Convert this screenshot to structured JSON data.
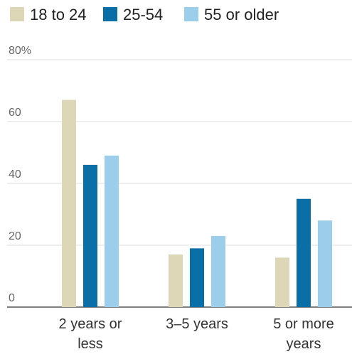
{
  "chart_data": {
    "type": "bar",
    "title": "",
    "xlabel": "",
    "ylabel": "",
    "ylim": [
      0,
      80
    ],
    "y_ticks": [
      {
        "value": 0,
        "label": "0"
      },
      {
        "value": 20,
        "label": "20"
      },
      {
        "value": 40,
        "label": "40"
      },
      {
        "value": 60,
        "label": "60"
      },
      {
        "value": 80,
        "label": "80%"
      }
    ],
    "grid": true,
    "legend_placement": "top-left",
    "categories": [
      {
        "lines": [
          "2 years or",
          "less"
        ]
      },
      {
        "lines": [
          "3–5 years"
        ]
      },
      {
        "lines": [
          "5 or more",
          "years"
        ]
      }
    ],
    "series": [
      {
        "name": "18 to 24",
        "color": "#ddd7b8",
        "values": [
          67,
          17,
          16
        ]
      },
      {
        "name": "25-54",
        "color": "#0a6fa6",
        "values": [
          46,
          19,
          35
        ]
      },
      {
        "name": "55 or older",
        "color": "#9ccdeb",
        "values": [
          49,
          23,
          28
        ]
      }
    ]
  }
}
